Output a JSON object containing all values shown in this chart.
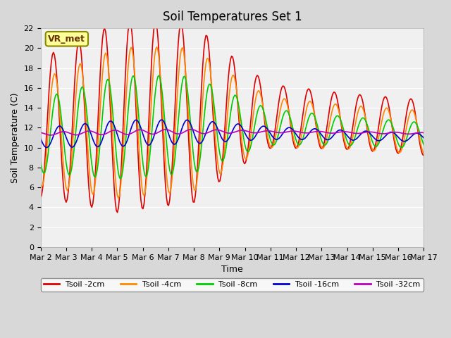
{
  "title": "Soil Temperatures Set 1",
  "xlabel": "Time",
  "ylabel": "Soil Temperature (C)",
  "ylim": [
    0,
    22
  ],
  "yticks": [
    0,
    2,
    4,
    6,
    8,
    10,
    12,
    14,
    16,
    18,
    20,
    22
  ],
  "xlabels": [
    "Mar 2",
    "Mar 3",
    "Mar 4",
    "Mar 5",
    "Mar 6",
    "Mar 7",
    "Mar 8",
    "Mar 9",
    "Mar 10",
    "Mar 11",
    "Mar 12",
    "Mar 13",
    "Mar 14",
    "Mar 15",
    "Mar 16",
    "Mar 17"
  ],
  "colors": {
    "Tsoil -2cm": "#dd0000",
    "Tsoil -4cm": "#ff8800",
    "Tsoil -8cm": "#00cc00",
    "Tsoil -16cm": "#0000cc",
    "Tsoil -32cm": "#bb00bb"
  },
  "plot_bg": "#f0f0f0",
  "annotation_text": "VR_met",
  "annotation_bg": "#ffff99",
  "annotation_border": "#888800"
}
